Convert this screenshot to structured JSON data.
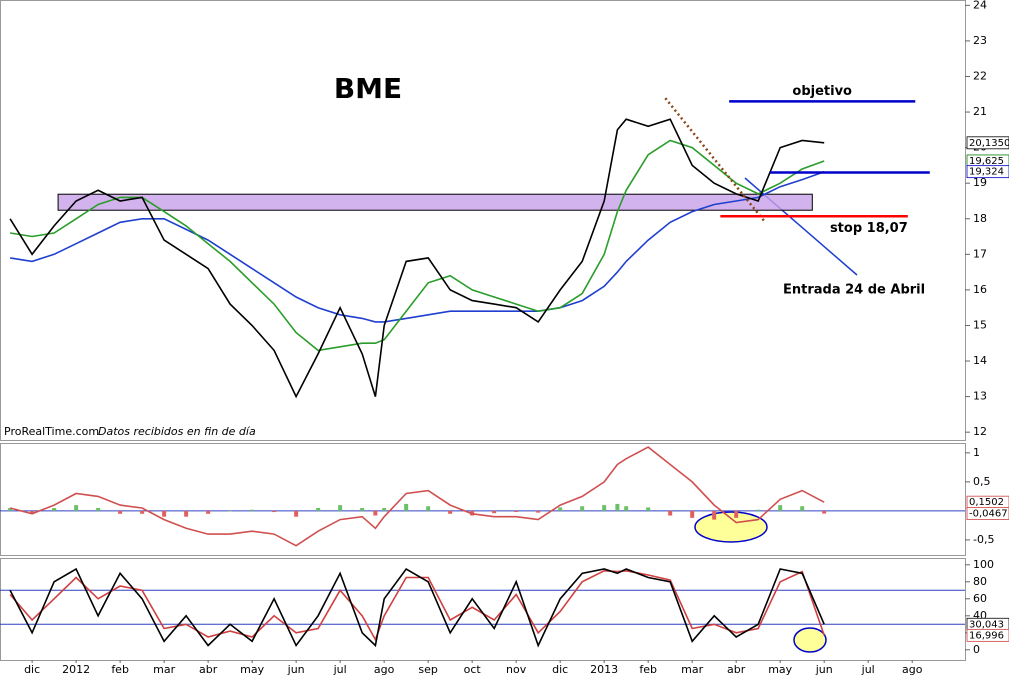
{
  "chart_data": [
    {
      "type": "line",
      "title": "BME",
      "source": "ProRealTime.com",
      "source_note": "Datos recibidos en fin de día",
      "annotation": "Entrada 24 de Abril",
      "x": [
        -0.5,
        0,
        0.5,
        1,
        1.5,
        2,
        2.5,
        3,
        3.5,
        4,
        4.5,
        5,
        5.5,
        6,
        6.5,
        7,
        7.5,
        7.8,
        8,
        8.5,
        9,
        9.5,
        10,
        10.5,
        11,
        11.5,
        12,
        12.5,
        13,
        13.3,
        13.5,
        14,
        14.5,
        15,
        15.5,
        16,
        16.5,
        17,
        17.5,
        18
      ],
      "xlim": [
        -0.73,
        21.2
      ],
      "ylim": [
        11.78,
        24.15
      ],
      "yticks": [
        12,
        13,
        14,
        15,
        16,
        17,
        18,
        19,
        20,
        21,
        22,
        23,
        24
      ],
      "series": [
        {
          "color": "#1f3fcf",
          "values": [
            16.9,
            16.8,
            17.0,
            17.3,
            17.6,
            17.9,
            18.0,
            18.0,
            17.7,
            17.4,
            17.0,
            16.6,
            16.2,
            15.8,
            15.5,
            15.3,
            15.2,
            15.1,
            15.1,
            15.2,
            15.3,
            15.4,
            15.4,
            15.4,
            15.4,
            15.4,
            15.5,
            15.7,
            16.1,
            16.5,
            16.8,
            17.4,
            17.9,
            18.2,
            18.4,
            18.5,
            18.6,
            18.9,
            19.1,
            19.324
          ]
        },
        {
          "color": "#2a9d2a",
          "values": [
            17.6,
            17.5,
            17.6,
            18.0,
            18.4,
            18.6,
            18.6,
            18.2,
            17.8,
            17.3,
            16.8,
            16.2,
            15.6,
            14.8,
            14.3,
            14.4,
            14.5,
            14.5,
            14.6,
            15.4,
            16.2,
            16.4,
            16.0,
            15.8,
            15.6,
            15.4,
            15.5,
            15.9,
            17.0,
            18.2,
            18.8,
            19.8,
            20.2,
            20.0,
            19.5,
            19.0,
            18.7,
            19.0,
            19.4,
            19.625
          ]
        },
        {
          "color": "#000000",
          "values": [
            18,
            17.0,
            17.8,
            18.5,
            18.8,
            18.5,
            18.6,
            17.4,
            17.0,
            16.6,
            15.6,
            15.0,
            14.3,
            13.0,
            14.2,
            15.5,
            14.2,
            13.0,
            15.0,
            16.8,
            16.9,
            16.0,
            15.7,
            15.6,
            15.5,
            15.1,
            16.0,
            16.8,
            18.5,
            20.5,
            20.8,
            20.6,
            20.8,
            19.5,
            19.0,
            18.7,
            18.5,
            20.0,
            20.2,
            20.135
          ]
        }
      ],
      "zone": {
        "ylim": [
          18.24,
          18.69
        ],
        "x": [
          0.59,
          17.73
        ],
        "color": "#c8a0e8"
      },
      "trendline": {
        "x": [
          14.39,
          16.66
        ],
        "y": [
          21.39,
          17.9
        ],
        "color": "#8b4513"
      },
      "levels": [
        {
          "label": "objetivo",
          "value": 21.3,
          "x": [
            15.84,
            20.07
          ],
          "color": "#0000cc"
        },
        {
          "value": 19.3,
          "x": [
            16.77,
            20.4
          ],
          "color": "#0000cc"
        },
        {
          "label": "stop 18,07",
          "value": 18.07,
          "x": [
            15.64,
            19.9
          ],
          "color": "#ff0000"
        }
      ],
      "last_labels": [
        {
          "value": 20.135,
          "label": "20,1350",
          "color": "#000000"
        },
        {
          "value": 19.625,
          "label": "19,625",
          "color": "#008000"
        },
        {
          "value": 19.324,
          "label": "19,324",
          "color": "#0000cc"
        }
      ]
    },
    {
      "type": "line",
      "x": [
        -0.5,
        0,
        0.5,
        1,
        1.5,
        2,
        2.5,
        3,
        3.5,
        4,
        4.5,
        5,
        5.5,
        6,
        6.5,
        7,
        7.5,
        7.8,
        8,
        8.5,
        9,
        9.5,
        10,
        10.5,
        11,
        11.5,
        12,
        12.5,
        13,
        13.3,
        13.5,
        14,
        14.5,
        15,
        15.5,
        16,
        16.5,
        17,
        17.5,
        18
      ],
      "xlim": [
        -0.73,
        21.2
      ],
      "ylim": [
        -0.76,
        1.17
      ],
      "yticks": [
        {
          "value": -0.5,
          "label": "-0,5"
        },
        {
          "value": 0.5,
          "label": "0,5"
        },
        1
      ],
      "hlines": [
        0
      ],
      "series": [
        {
          "style": "bar",
          "color": "#6cc06c",
          "negative_color": "#e06060",
          "values": [
            0.05,
            -0.05,
            0.05,
            0.1,
            0.05,
            -0.05,
            -0.05,
            -0.1,
            -0.1,
            -0.05,
            0,
            0.02,
            -0.02,
            -0.1,
            0.05,
            0.1,
            0.05,
            -0.08,
            0.05,
            0.12,
            0.08,
            -0.05,
            -0.08,
            -0.04,
            -0.02,
            -0.03,
            0.06,
            0.08,
            0.1,
            0.12,
            0.08,
            0.06,
            -0.08,
            -0.12,
            -0.15,
            -0.12,
            0.02,
            0.1,
            0.08,
            -0.0467
          ]
        },
        {
          "color": "#d05050",
          "values": [
            0.05,
            -0.05,
            0.1,
            0.3,
            0.25,
            0.1,
            0.05,
            -0.15,
            -0.3,
            -0.4,
            -0.4,
            -0.35,
            -0.4,
            -0.6,
            -0.35,
            -0.15,
            -0.1,
            -0.3,
            -0.1,
            0.3,
            0.35,
            0.1,
            -0.05,
            -0.1,
            -0.1,
            -0.15,
            0.1,
            0.25,
            0.5,
            0.8,
            0.9,
            1.1,
            0.8,
            0.5,
            0.1,
            -0.2,
            -0.15,
            0.2,
            0.35,
            0.1502
          ]
        }
      ],
      "last_labels": [
        {
          "value": 0.1502,
          "label": "0,1502",
          "color": "#d04040"
        },
        {
          "value": -0.0467,
          "label": "-0,0467",
          "color": "#d04040"
        }
      ]
    },
    {
      "type": "line",
      "x": [
        -0.5,
        0,
        0.5,
        1,
        1.5,
        2,
        2.5,
        3,
        3.5,
        4,
        4.5,
        5,
        5.5,
        6,
        6.5,
        7,
        7.5,
        7.8,
        8,
        8.5,
        9,
        9.5,
        10,
        10.5,
        11,
        11.5,
        12,
        12.5,
        13,
        13.3,
        13.5,
        14,
        14.5,
        15,
        15.5,
        16,
        16.5,
        17,
        17.5,
        18
      ],
      "xlim": [
        -0.73,
        21.2
      ],
      "ylim": [
        -12,
        108
      ],
      "yticks": [
        0,
        20,
        40,
        60,
        80,
        100
      ],
      "hlines": [
        70,
        30
      ],
      "xticks": [
        {
          "value": 0,
          "label": "dic"
        },
        {
          "value": 1,
          "label": "2012"
        },
        {
          "value": 2,
          "label": "feb"
        },
        {
          "value": 3,
          "label": "mar"
        },
        {
          "value": 4,
          "label": "abr"
        },
        {
          "value": 5,
          "label": "may"
        },
        {
          "value": 6,
          "label": "jun"
        },
        {
          "value": 7,
          "label": "jul"
        },
        {
          "value": 8,
          "label": "ago"
        },
        {
          "value": 9,
          "label": "sep"
        },
        {
          "value": 10,
          "label": "oct"
        },
        {
          "value": 11,
          "label": "nov"
        },
        {
          "value": 12,
          "label": "dic"
        },
        {
          "value": 13,
          "label": "2013"
        },
        {
          "value": 14,
          "label": "feb"
        },
        {
          "value": 15,
          "label": "mar"
        },
        {
          "value": 16,
          "label": "abr"
        },
        {
          "value": 17,
          "label": "may"
        },
        {
          "value": 18,
          "label": "jun"
        },
        {
          "value": 19,
          "label": "jul"
        },
        {
          "value": 20,
          "label": "ago"
        }
      ],
      "series": [
        {
          "color": "#d04040",
          "values": [
            65,
            35,
            60,
            85,
            60,
            75,
            70,
            25,
            30,
            15,
            22,
            15,
            40,
            20,
            25,
            70,
            40,
            12,
            40,
            85,
            85,
            35,
            50,
            35,
            65,
            20,
            45,
            80,
            93,
            92,
            93,
            88,
            82,
            25,
            30,
            20,
            25,
            80,
            92,
            16.996
          ]
        },
        {
          "color": "#000000",
          "values": [
            70,
            20,
            80,
            95,
            40,
            90,
            60,
            10,
            40,
            5,
            30,
            10,
            60,
            5,
            40,
            90,
            20,
            5,
            60,
            95,
            80,
            20,
            60,
            25,
            80,
            5,
            60,
            90,
            95,
            90,
            95,
            85,
            80,
            10,
            40,
            15,
            30,
            95,
            90,
            30.043
          ]
        }
      ],
      "last_labels": [
        {
          "value": 30.043,
          "label": "30,043",
          "color": "#000000"
        },
        {
          "value": 16.996,
          "label": "16,996",
          "color": "#d04040"
        }
      ]
    }
  ]
}
